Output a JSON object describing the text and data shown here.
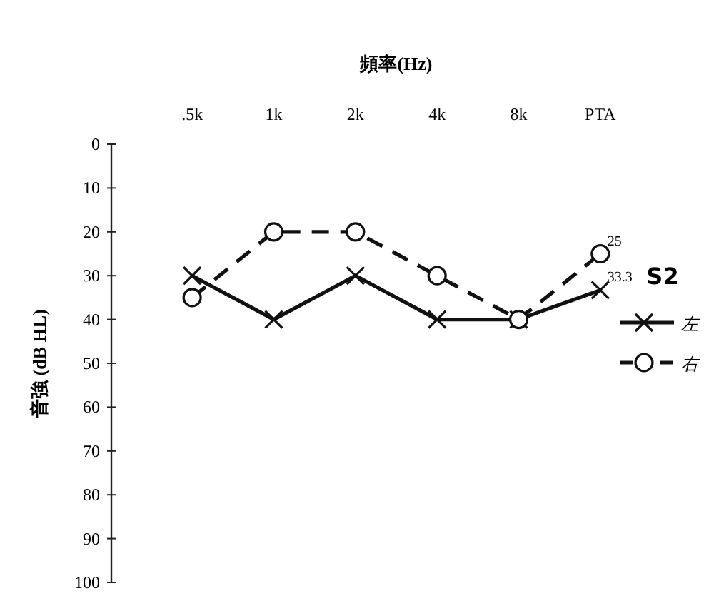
{
  "chart_data": {
    "type": "line",
    "xlabel": "頻率(Hz)",
    "ylabel": "音強 (dB HL)",
    "annotations": [
      "S2"
    ],
    "categories": [
      ".5k",
      "1k",
      "2k",
      "4k",
      "8k",
      "PTA"
    ],
    "ylim": [
      100,
      0
    ],
    "yticks": [
      0,
      10,
      20,
      30,
      40,
      50,
      60,
      70,
      80,
      90,
      100
    ],
    "grid": false,
    "legend": "right",
    "series": [
      {
        "name": "左",
        "color": "#111111",
        "marker": "cross",
        "line_style": "solid",
        "values": [
          30,
          40,
          30,
          40,
          40,
          33.3
        ],
        "value_labels": [
          null,
          null,
          null,
          null,
          null,
          "33.3"
        ]
      },
      {
        "name": "右",
        "color": "#111111",
        "marker": "circle",
        "line_style": "dashed",
        "values": [
          35,
          20,
          20,
          30,
          40,
          25
        ],
        "value_labels": [
          null,
          null,
          null,
          null,
          null,
          "25"
        ]
      }
    ]
  }
}
